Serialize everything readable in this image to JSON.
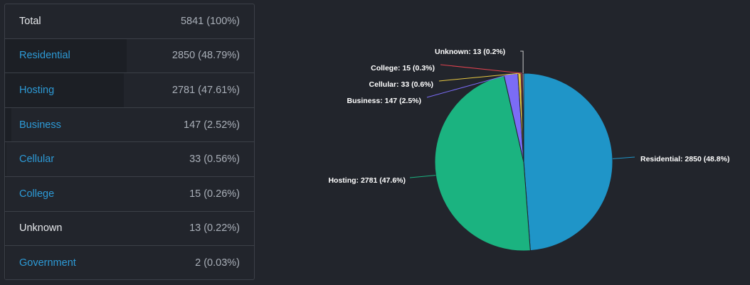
{
  "table": {
    "rows": [
      {
        "label": "Total",
        "value": "5841 (100%)",
        "link": false
      },
      {
        "label": "Residential",
        "value": "2850 (48.79%)",
        "link": true,
        "share": 0.4879
      },
      {
        "label": "Hosting",
        "value": "2781 (47.61%)",
        "link": true,
        "share": 0.4761
      },
      {
        "label": "Business",
        "value": "147 (2.52%)",
        "link": true,
        "share": 0.0252
      },
      {
        "label": "Cellular",
        "value": "33 (0.56%)",
        "link": true,
        "share": 0.0056
      },
      {
        "label": "College",
        "value": "15 (0.26%)",
        "link": true,
        "share": 0.0026
      },
      {
        "label": "Unknown",
        "value": "13 (0.22%)",
        "link": false,
        "share": 0.0022
      },
      {
        "label": "Government",
        "value": "2 (0.03%)",
        "link": true,
        "share": 0.0003
      }
    ]
  },
  "chart_data": {
    "type": "pie",
    "title": "",
    "categories": [
      "Residential",
      "Hosting",
      "Business",
      "Cellular",
      "College",
      "Unknown"
    ],
    "values": [
      2850,
      2781,
      147,
      33,
      15,
      13
    ],
    "labels": [
      "Residential: 2850 (48.8%)",
      "Hosting: 2781 (47.6%)",
      "Business: 147 (2.5%)",
      "Cellular: 33 (0.6%)",
      "College: 15 (0.3%)",
      "Unknown: 13 (0.2%)"
    ],
    "colors": [
      "#1f95c8",
      "#1bb380",
      "#7b6cf6",
      "#e8c842",
      "#e0424f",
      "#c7c7c7"
    ]
  }
}
